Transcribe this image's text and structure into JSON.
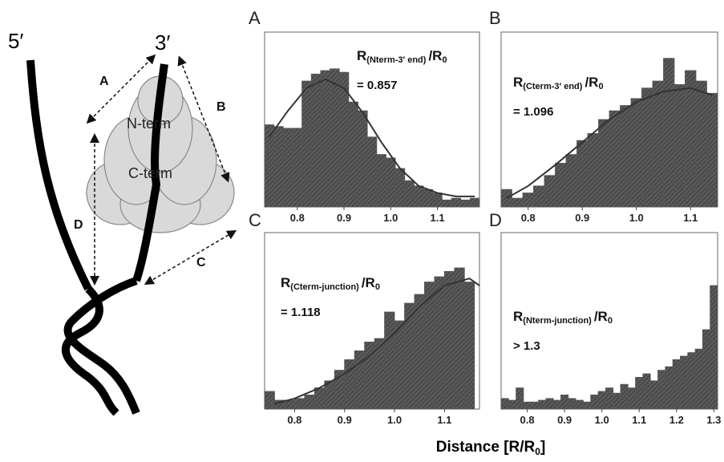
{
  "figure": {
    "xlabel_main": "Distance [R/R",
    "xlabel_sub": "0",
    "xlabel_end": "]"
  },
  "diagram": {
    "five_prime": "5′",
    "three_prime": "3′",
    "arrow_a": "A",
    "arrow_b": "B",
    "arrow_c": "C",
    "arrow_d": "D",
    "n_term": "N-term",
    "c_term": "C-term"
  },
  "chart_data": [
    {
      "type": "histogram",
      "panel": "A",
      "color": "#555555",
      "label_main": "R",
      "label_sub": "(Nterm-3′ end)",
      "label_tail": "/R",
      "label_tail_sub": "0",
      "value_text": "= 0.857",
      "bins": [
        0.73,
        0.75,
        0.77,
        0.79,
        0.81,
        0.83,
        0.85,
        0.87,
        0.89,
        0.91,
        0.93,
        0.95,
        0.97,
        0.99,
        1.01,
        1.03,
        1.05,
        1.07,
        1.09,
        1.11,
        1.13,
        1.15,
        1.17,
        1.19
      ],
      "counts": [
        47,
        46,
        45,
        45,
        72,
        76,
        78,
        79,
        77,
        60,
        55,
        40,
        30,
        28,
        22,
        15,
        12,
        10,
        8,
        4,
        5,
        4,
        5
      ],
      "fit": {
        "x": [
          0.74,
          0.78,
          0.82,
          0.86,
          0.9,
          0.94,
          0.98,
          1.02,
          1.06,
          1.1,
          1.14,
          1.18
        ],
        "values": [
          40,
          55,
          68,
          73,
          68,
          54,
          37,
          22,
          12,
          8,
          6,
          6
        ]
      },
      "xlim": [
        0.73,
        1.19
      ],
      "ylim": [
        0,
        100
      ],
      "xticks": [
        0.8,
        0.9,
        {
          "value": 1,
          "label": "1.0"
        },
        1.1
      ]
    },
    {
      "type": "histogram",
      "panel": "B",
      "color": "#555555",
      "label_main": "R",
      "label_sub": "(Cterm-3′ end)",
      "label_tail": "/R",
      "label_tail_sub": "0",
      "value_text": "= 1.096",
      "bins": [
        0.75,
        0.77,
        0.79,
        0.81,
        0.83,
        0.85,
        0.87,
        0.89,
        0.91,
        0.93,
        0.95,
        0.97,
        0.99,
        1.01,
        1.03,
        1.05,
        1.07,
        1.09,
        1.11,
        1.13,
        1.15
      ],
      "counts": [
        10,
        5,
        8,
        12,
        18,
        25,
        30,
        38,
        42,
        50,
        55,
        58,
        62,
        68,
        72,
        85,
        70,
        78,
        72,
        65
      ],
      "fit": {
        "x": [
          0.76,
          0.8,
          0.85,
          0.9,
          0.95,
          1.0,
          1.05,
          1.1,
          1.14
        ],
        "values": [
          5,
          12,
          24,
          37,
          50,
          60,
          66,
          68,
          64
        ]
      },
      "xlim": [
        0.75,
        1.15
      ],
      "ylim": [
        0,
        100
      ],
      "xticks": [
        0.8,
        0.9,
        {
          "value": 1,
          "label": "1.0"
        },
        1.1
      ]
    },
    {
      "type": "histogram",
      "panel": "C",
      "color": "#555555",
      "label_main": "R",
      "label_sub": "(Cterm-junction)",
      "label_tail": "/R",
      "label_tail_sub": "0",
      "value_text": "= 1.118",
      "bins": [
        0.74,
        0.76,
        0.78,
        0.8,
        0.82,
        0.84,
        0.86,
        0.88,
        0.9,
        0.92,
        0.94,
        0.96,
        0.98,
        1.0,
        1.02,
        1.04,
        1.06,
        1.08,
        1.1,
        1.12,
        1.14,
        1.16
      ],
      "counts": [
        10,
        5,
        5,
        6,
        8,
        12,
        16,
        22,
        28,
        33,
        38,
        40,
        55,
        50,
        60,
        65,
        72,
        75,
        78,
        80,
        72
      ],
      "fit": {
        "x": [
          0.76,
          0.8,
          0.85,
          0.9,
          0.95,
          1.0,
          1.05,
          1.1,
          1.15,
          1.17
        ],
        "values": [
          3,
          6,
          12,
          20,
          30,
          43,
          58,
          70,
          74,
          70
        ]
      },
      "xlim": [
        0.74,
        1.17
      ],
      "ylim": [
        0,
        100
      ],
      "xticks": [
        0.8,
        0.9,
        {
          "value": 1,
          "label": "1.0"
        },
        1.1
      ]
    },
    {
      "type": "histogram",
      "panel": "D",
      "color": "#555555",
      "label_main": "R",
      "label_sub": "(Nterm-junction)",
      "label_tail": "/R",
      "label_tail_sub": "0",
      "value_text": "> 1.3",
      "bins": [
        0.73,
        0.75,
        0.77,
        0.79,
        0.81,
        0.83,
        0.85,
        0.87,
        0.89,
        0.91,
        0.93,
        0.95,
        0.97,
        0.99,
        1.01,
        1.03,
        1.05,
        1.07,
        1.09,
        1.11,
        1.13,
        1.15,
        1.17,
        1.19,
        1.21,
        1.23,
        1.25,
        1.27,
        1.29,
        1.31
      ],
      "counts": [
        6,
        5,
        12,
        4,
        4,
        5,
        6,
        5,
        8,
        6,
        5,
        4,
        8,
        10,
        12,
        9,
        14,
        12,
        18,
        20,
        16,
        22,
        24,
        28,
        30,
        32,
        34,
        45,
        70
      ],
      "xlim": [
        0.73,
        1.31
      ],
      "ylim": [
        0,
        100
      ],
      "xticks": [
        0.8,
        0.9,
        {
          "value": 1,
          "label": "1.0"
        },
        1.1,
        1.2,
        1.3
      ]
    }
  ]
}
